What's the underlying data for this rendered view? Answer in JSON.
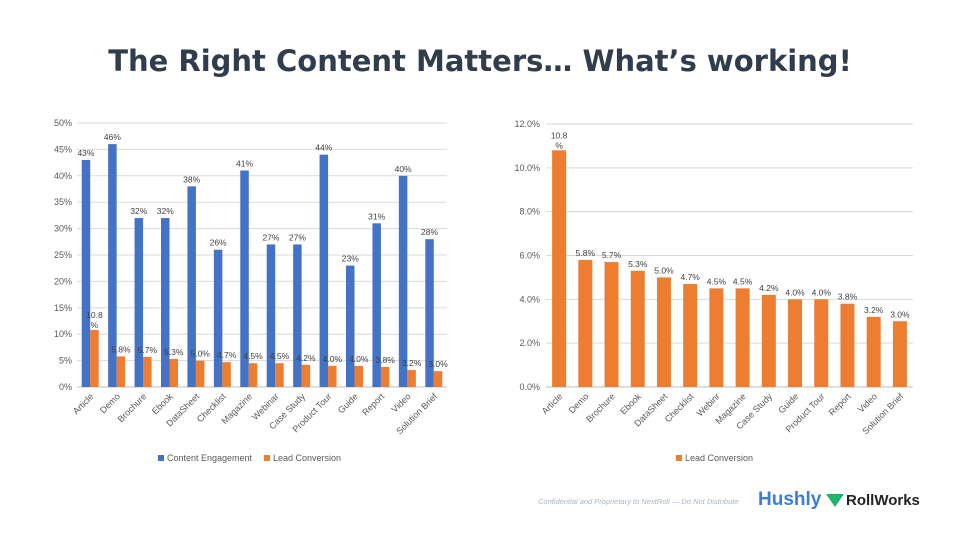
{
  "title": "The Right Content Matters… What’s working!",
  "footer": "Confidential and Proprietary to NextRoll — Do Not Distribute",
  "logos": [
    "Hushly",
    "RollWorks"
  ],
  "colors": {
    "engagement": "#4472c4",
    "conversion": "#ed7d31",
    "title": "#2f3d4c"
  },
  "chart_data": [
    {
      "type": "bar",
      "categories": [
        "Article",
        "Demo",
        "Brochure",
        "Ebook",
        "DataSheet",
        "Checklist",
        "Magazine",
        "Webinar",
        "Case Study",
        "Product Tour",
        "Guide",
        "Report",
        "Video",
        "Solution Brief"
      ],
      "series": [
        {
          "name": "Content Engagement",
          "values": [
            43,
            46,
            32,
            32,
            38,
            26,
            41,
            27,
            27,
            44,
            23,
            31,
            40,
            28
          ],
          "labels": [
            "43%",
            "46%",
            "32%",
            "32%",
            "38%",
            "26%",
            "41%",
            "27%",
            "27%",
            "44%",
            "23%",
            "31%",
            "40%",
            "28%"
          ]
        },
        {
          "name": "Lead Conversion",
          "values": [
            10.8,
            5.8,
            5.7,
            5.3,
            5.0,
            4.7,
            4.5,
            4.5,
            4.2,
            4.0,
            4.0,
            3.8,
            3.2,
            3.0
          ],
          "labels": [
            "10.8%",
            "5.8%",
            "5.7%",
            "5.3%",
            "5.0%",
            "4.7%",
            "4.5%",
            "4.5%",
            "4.2%",
            "4.0%",
            "4.0%",
            "3.8%",
            "3.2%",
            "3.0%"
          ]
        }
      ],
      "yticks": [
        "0%",
        "5%",
        "10%",
        "15%",
        "20%",
        "25%",
        "30%",
        "35%",
        "40%",
        "45%",
        "50%"
      ],
      "ylim": [
        0,
        50
      ],
      "grid": true,
      "legend": "bottom"
    },
    {
      "type": "bar",
      "categories": [
        "Article",
        "Demo",
        "Brochure",
        "Ebook",
        "DataSheet",
        "Checklist",
        "Webinr",
        "Magazine",
        "Case Study",
        "Guide",
        "Product Tour",
        "Report",
        "Video",
        "Solution Brief"
      ],
      "series": [
        {
          "name": "Lead Conversion",
          "values": [
            10.8,
            5.8,
            5.7,
            5.3,
            5.0,
            4.7,
            4.5,
            4.5,
            4.2,
            4.0,
            4.0,
            3.8,
            3.2,
            3.0
          ],
          "labels": [
            "10.8%",
            "5.8%",
            "5.7%",
            "5.3%",
            "5.0%",
            "4.7%",
            "4.5%",
            "4.5%",
            "4.2%",
            "4.0%",
            "4.0%",
            "3.8%",
            "3.2%",
            "3.0%"
          ]
        }
      ],
      "yticks": [
        "0.0%",
        "2.0%",
        "4.0%",
        "6.0%",
        "8.0%",
        "10.0%",
        "12.0%"
      ],
      "ylim": [
        0,
        12
      ],
      "grid": true,
      "legend": "bottom"
    }
  ]
}
